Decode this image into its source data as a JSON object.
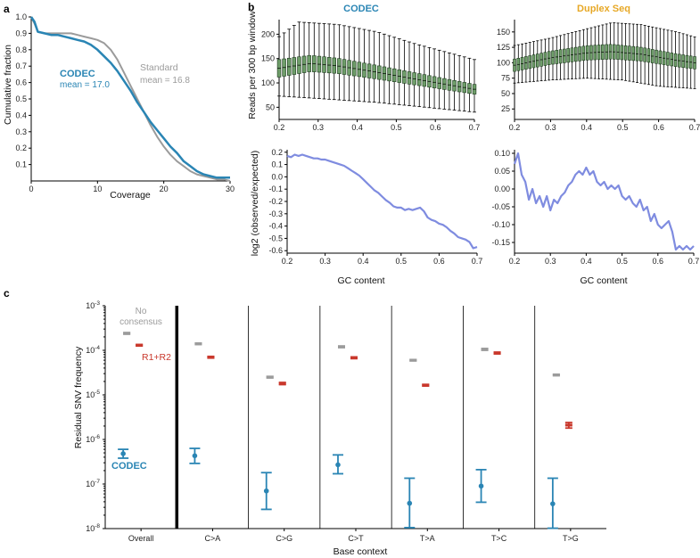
{
  "panels": {
    "a": "a",
    "b": "b",
    "c": "c"
  },
  "colors": {
    "codec": "#2a85b4",
    "standard": "#9b9b9b",
    "duplex_title": "#e7a826",
    "box_fill": "#6f9e6a",
    "ratio_line": "#7f8ce0",
    "nocons": "#9b9b9b",
    "r1r2": "#c9382c"
  },
  "chart_data": [
    {
      "id": "a",
      "type": "line",
      "xlabel": "Coverage",
      "ylabel": "Cumulative fraction",
      "xlim": [
        0,
        30
      ],
      "ylim": [
        0,
        1.0
      ],
      "xticks": [
        0,
        10,
        20,
        30
      ],
      "yticks": [
        0.1,
        0.2,
        0.3,
        0.4,
        0.5,
        0.6,
        0.7,
        0.8,
        0.9,
        1.0
      ],
      "series": [
        {
          "name": "Standard",
          "x": [
            0,
            0.5,
            1,
            2,
            3,
            4,
            5,
            6,
            7,
            8,
            9,
            10,
            11,
            12,
            13,
            14,
            15,
            16,
            17,
            18,
            19,
            20,
            21,
            22,
            23,
            24,
            25,
            26,
            27,
            28,
            29,
            30
          ],
          "y": [
            1.0,
            0.96,
            0.91,
            0.9,
            0.9,
            0.9,
            0.9,
            0.9,
            0.89,
            0.88,
            0.87,
            0.86,
            0.84,
            0.8,
            0.74,
            0.66,
            0.58,
            0.5,
            0.42,
            0.34,
            0.27,
            0.21,
            0.16,
            0.12,
            0.09,
            0.06,
            0.04,
            0.03,
            0.02,
            0.01,
            0.01,
            0.0
          ]
        },
        {
          "name": "CODEC",
          "x": [
            0,
            0.5,
            1,
            2,
            3,
            4,
            5,
            6,
            7,
            8,
            9,
            10,
            11,
            12,
            13,
            14,
            15,
            16,
            17,
            18,
            19,
            20,
            21,
            22,
            23,
            24,
            25,
            26,
            27,
            28,
            29,
            30
          ],
          "y": [
            1.0,
            0.97,
            0.91,
            0.9,
            0.89,
            0.89,
            0.88,
            0.87,
            0.86,
            0.85,
            0.83,
            0.8,
            0.76,
            0.72,
            0.67,
            0.61,
            0.55,
            0.48,
            0.42,
            0.36,
            0.31,
            0.26,
            0.21,
            0.17,
            0.12,
            0.09,
            0.06,
            0.04,
            0.03,
            0.02,
            0.02,
            0.02
          ]
        }
      ],
      "annotations": {
        "codec": "CODEC",
        "codec_mean": "mean = 17.0",
        "standard": "Standard",
        "standard_mean": "mean = 16.8"
      }
    },
    {
      "id": "b_codec_box",
      "type": "box",
      "title": "CODEC",
      "ylabel": "Reads per 300 bp window",
      "xlim": [
        0.2,
        0.7
      ],
      "ylim": [
        25,
        230
      ],
      "xticks": [
        0.2,
        0.3,
        0.4,
        0.5,
        0.6,
        0.7
      ],
      "yticks": [
        50,
        100,
        150,
        200
      ],
      "x0": 0.2,
      "x1": 0.7,
      "n": 40,
      "med": [
        [
          0.2,
          130
        ],
        [
          0.28,
          140
        ],
        [
          0.35,
          135
        ],
        [
          0.45,
          122
        ],
        [
          0.55,
          108
        ],
        [
          0.7,
          87
        ]
      ],
      "q_half": [
        [
          0.2,
          18
        ],
        [
          0.7,
          10
        ]
      ],
      "upper": [
        [
          0.2,
          195
        ],
        [
          0.25,
          225
        ],
        [
          0.35,
          220
        ],
        [
          0.45,
          205
        ],
        [
          0.55,
          180
        ],
        [
          0.7,
          148
        ]
      ],
      "lower": [
        [
          0.2,
          73
        ],
        [
          0.3,
          68
        ],
        [
          0.45,
          60
        ],
        [
          0.6,
          48
        ],
        [
          0.7,
          40
        ]
      ]
    },
    {
      "id": "b_duplex_box",
      "type": "box",
      "title": "Duplex Seq",
      "ylabel": "",
      "xlim": [
        0.2,
        0.7
      ],
      "ylim": [
        8,
        170
      ],
      "xticks": [
        0.2,
        0.3,
        0.4,
        0.5,
        0.6,
        0.7
      ],
      "yticks": [
        25,
        50,
        75,
        100,
        125,
        150
      ],
      "x0": 0.2,
      "x1": 0.7,
      "n": 48,
      "med": [
        [
          0.2,
          96
        ],
        [
          0.3,
          108
        ],
        [
          0.4,
          116
        ],
        [
          0.47,
          118
        ],
        [
          0.55,
          114
        ],
        [
          0.65,
          104
        ],
        [
          0.7,
          100
        ]
      ],
      "q_half": [
        [
          0.2,
          10
        ],
        [
          0.45,
          12
        ],
        [
          0.7,
          10
        ]
      ],
      "upper": [
        [
          0.2,
          128
        ],
        [
          0.3,
          140
        ],
        [
          0.4,
          155
        ],
        [
          0.47,
          165
        ],
        [
          0.55,
          162
        ],
        [
          0.65,
          150
        ],
        [
          0.7,
          142
        ]
      ],
      "lower": [
        [
          0.2,
          67
        ],
        [
          0.3,
          72
        ],
        [
          0.4,
          75
        ],
        [
          0.5,
          72
        ],
        [
          0.6,
          62
        ],
        [
          0.7,
          58
        ]
      ]
    },
    {
      "id": "b_codec_ratio",
      "type": "line",
      "xlabel": "GC content",
      "ylabel": "log2 (observed/expected)",
      "xlim": [
        0.2,
        0.7
      ],
      "ylim": [
        -0.62,
        0.22
      ],
      "xticks": [
        0.2,
        0.3,
        0.4,
        0.5,
        0.6,
        0.7
      ],
      "yticks": [
        0.2,
        0.1,
        0.0,
        -0.1,
        -0.2,
        -0.3,
        -0.4,
        -0.5,
        -0.6
      ],
      "x": [
        0.2,
        0.21,
        0.22,
        0.23,
        0.24,
        0.25,
        0.26,
        0.27,
        0.28,
        0.29,
        0.3,
        0.31,
        0.32,
        0.33,
        0.34,
        0.35,
        0.36,
        0.37,
        0.38,
        0.39,
        0.4,
        0.41,
        0.42,
        0.43,
        0.44,
        0.45,
        0.46,
        0.47,
        0.48,
        0.49,
        0.5,
        0.51,
        0.52,
        0.53,
        0.54,
        0.55,
        0.56,
        0.57,
        0.58,
        0.59,
        0.6,
        0.61,
        0.62,
        0.63,
        0.64,
        0.65,
        0.66,
        0.67,
        0.68,
        0.69,
        0.7
      ],
      "y": [
        0.17,
        0.16,
        0.18,
        0.17,
        0.18,
        0.17,
        0.16,
        0.15,
        0.15,
        0.14,
        0.14,
        0.13,
        0.12,
        0.11,
        0.1,
        0.09,
        0.07,
        0.05,
        0.03,
        0.01,
        -0.02,
        -0.05,
        -0.08,
        -0.11,
        -0.13,
        -0.16,
        -0.19,
        -0.21,
        -0.24,
        -0.25,
        -0.25,
        -0.27,
        -0.26,
        -0.27,
        -0.26,
        -0.25,
        -0.28,
        -0.33,
        -0.35,
        -0.36,
        -0.38,
        -0.39,
        -0.41,
        -0.44,
        -0.46,
        -0.49,
        -0.5,
        -0.51,
        -0.53,
        -0.58,
        -0.57
      ]
    },
    {
      "id": "b_duplex_ratio",
      "type": "line",
      "xlabel": "GC content",
      "ylabel": "",
      "xlim": [
        0.2,
        0.7
      ],
      "ylim": [
        -0.18,
        0.11
      ],
      "xticks": [
        0.2,
        0.3,
        0.4,
        0.5,
        0.6,
        0.7
      ],
      "yticks": [
        0.1,
        0.05,
        0.0,
        -0.05,
        -0.1,
        -0.15
      ],
      "x": [
        0.2,
        0.21,
        0.22,
        0.23,
        0.24,
        0.25,
        0.26,
        0.27,
        0.28,
        0.29,
        0.3,
        0.31,
        0.32,
        0.33,
        0.34,
        0.35,
        0.36,
        0.37,
        0.38,
        0.39,
        0.4,
        0.41,
        0.42,
        0.43,
        0.44,
        0.45,
        0.46,
        0.47,
        0.48,
        0.49,
        0.5,
        0.51,
        0.52,
        0.53,
        0.54,
        0.55,
        0.56,
        0.57,
        0.58,
        0.59,
        0.6,
        0.61,
        0.62,
        0.63,
        0.64,
        0.65,
        0.66,
        0.67,
        0.68,
        0.69,
        0.7
      ],
      "y": [
        0.07,
        0.1,
        0.04,
        0.02,
        -0.03,
        0.0,
        -0.04,
        -0.02,
        -0.05,
        -0.02,
        -0.06,
        -0.03,
        -0.04,
        -0.02,
        -0.01,
        0.01,
        0.02,
        0.04,
        0.05,
        0.04,
        0.06,
        0.04,
        0.05,
        0.02,
        0.01,
        0.02,
        0.0,
        0.01,
        0.0,
        0.01,
        -0.02,
        -0.03,
        -0.02,
        -0.04,
        -0.05,
        -0.03,
        -0.06,
        -0.05,
        -0.09,
        -0.07,
        -0.1,
        -0.11,
        -0.1,
        -0.09,
        -0.12,
        -0.17,
        -0.16,
        -0.17,
        -0.16,
        -0.17,
        -0.16
      ]
    },
    {
      "id": "c",
      "type": "scatter",
      "xlabel": "Base context",
      "ylabel": "Residual SNV frequency",
      "yscale": "log",
      "ylim_exp": [
        -8,
        -3
      ],
      "ytick_exps": [
        "-3",
        "-4",
        "-5",
        "-6",
        "-7",
        "-8"
      ],
      "categories": [
        "Overall",
        "C>A",
        "C>G",
        "C>T",
        "T>A",
        "T>C",
        "T>G"
      ],
      "series": [
        {
          "name": "No consensus",
          "values": [
            0.00024,
            0.00014,
            2.5e-05,
            0.00012,
            6e-05,
            0.000105,
            2.8e-05
          ],
          "err_lo": [
            0.00023,
            0.000135,
            2.4e-05,
            0.000115,
            5.8e-05,
            0.0001,
            2.7e-05
          ],
          "err_hi": [
            0.00025,
            0.000145,
            2.6e-05,
            0.000125,
            6.2e-05,
            0.00011,
            2.9e-05
          ]
        },
        {
          "name": "R1+R2",
          "values": [
            0.00013,
            7e-05,
            1.8e-05,
            6.8e-05,
            1.65e-05,
            8.7e-05,
            2.1e-06
          ],
          "err_lo": [
            0.000125,
            6.7e-05,
            1.7e-05,
            6.5e-05,
            1.58e-05,
            8.3e-05,
            1.8e-06
          ],
          "err_hi": [
            0.000135,
            7.3e-05,
            1.9e-05,
            7.1e-05,
            1.72e-05,
            9.1e-05,
            2.4e-06
          ]
        },
        {
          "name": "CODEC",
          "values": [
            4.8e-07,
            4.3e-07,
            7e-08,
            2.7e-07,
            3.7e-08,
            9e-08,
            3.6e-08
          ],
          "err_lo": [
            3.8e-07,
            2.9e-07,
            2.7e-08,
            1.7e-07,
            1.05e-08,
            3.9e-08,
            1.02e-08
          ],
          "err_hi": [
            6e-07,
            6.3e-07,
            1.8e-07,
            4.5e-07,
            1.35e-07,
            2.1e-07,
            1.35e-07
          ]
        }
      ],
      "annotations": {
        "no_consensus_l1": "No",
        "no_consensus_l2": "consensus",
        "r1r2": "R1+R2",
        "codec": "CODEC"
      }
    }
  ]
}
